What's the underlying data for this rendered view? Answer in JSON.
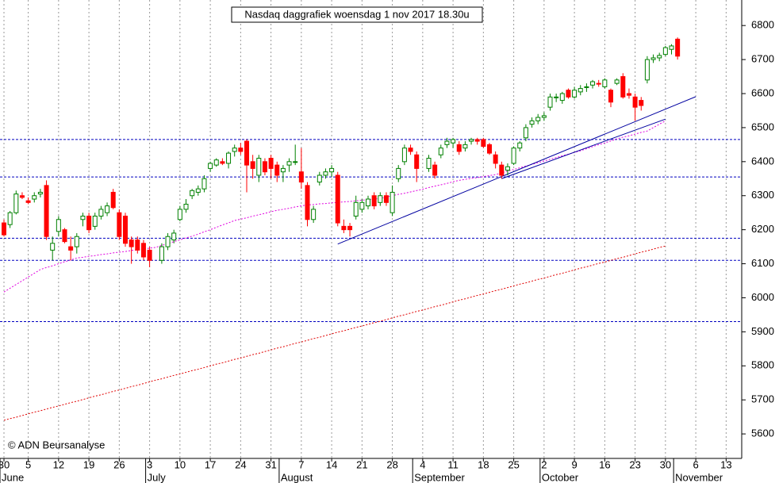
{
  "chart_data": {
    "type": "candlestick",
    "title": "Nasdaq daggrafiek woensdag 1 nov 2017 18.30u",
    "watermark": "© ADN Beursanalyse",
    "categories": [
      "30",
      null,
      null,
      null,
      "5",
      null,
      null,
      null,
      null,
      "12",
      null,
      null,
      null,
      null,
      "19",
      null,
      null,
      null,
      null,
      "26",
      null,
      null,
      null,
      null,
      "3",
      null,
      null,
      null,
      null,
      "10",
      null,
      null,
      null,
      null,
      "17",
      null,
      null,
      null,
      null,
      "24",
      null,
      null,
      null,
      null,
      "31",
      null,
      null,
      null,
      null,
      "7",
      null,
      null,
      null,
      null,
      "14",
      null,
      null,
      null,
      null,
      "21",
      null,
      null,
      null,
      null,
      "28",
      null,
      null,
      null,
      null,
      "4",
      null,
      null,
      null,
      null,
      "11",
      null,
      null,
      null,
      null,
      "18",
      null,
      null,
      null,
      null,
      "25",
      null,
      null,
      null,
      null,
      "2",
      null,
      null,
      null,
      null,
      "9",
      null,
      null,
      null,
      null,
      "16",
      null,
      null,
      null,
      null,
      "23",
      null,
      null,
      null,
      null,
      "30",
      null,
      null,
      null,
      null,
      "6",
      null,
      null,
      null,
      null,
      "13"
    ],
    "months": [
      "June",
      null,
      null,
      null,
      null,
      null,
      null,
      null,
      null,
      null,
      null,
      null,
      null,
      null,
      null,
      null,
      null,
      null,
      null,
      null,
      null,
      null,
      null,
      null,
      "July",
      null,
      null,
      null,
      null,
      null,
      null,
      null,
      null,
      null,
      null,
      null,
      null,
      null,
      null,
      null,
      null,
      null,
      null,
      null,
      null,
      null,
      "August",
      null,
      null,
      null,
      null,
      null,
      null,
      null,
      null,
      null,
      null,
      null,
      null,
      null,
      null,
      null,
      null,
      null,
      null,
      null,
      null,
      null,
      "September",
      null,
      null,
      null,
      null,
      null,
      null,
      null,
      null,
      null,
      null,
      null,
      null,
      null,
      null,
      null,
      null,
      null,
      null,
      null,
      null,
      "October",
      null,
      null,
      null,
      null,
      null,
      null,
      null,
      null,
      null,
      null,
      null,
      null,
      null,
      null,
      null,
      null,
      null,
      null,
      null,
      null,
      null,
      "November",
      null,
      null,
      null,
      null,
      null,
      null,
      null,
      null
    ],
    "open": [
      6220,
      6215,
      6250,
      6300,
      6285,
      6290,
      6305,
      6330,
      6140,
      6195,
      6200,
      6150,
      6150,
      6230,
      6240,
      6210,
      6240,
      6250,
      6310,
      6250,
      6240,
      6170,
      6170,
      6160,
      6140,
      null,
      6110,
      6150,
      6170,
      6230,
      6260,
      6300,
      6310,
      6320,
      6380,
      6390,
      6400,
      6395,
      6430,
      6440,
      6460,
      6400,
      6360,
      6400,
      6410,
      6390,
      6370,
      6390,
      6400,
      6370,
      6330,
      6230,
      6340,
      6360,
      6370,
      6360,
      6210,
      6210,
      6240,
      6260,
      6270,
      6300,
      6280,
      6300,
      6250,
      6350,
      6400,
      6440,
      6420,
      null,
      6380,
      6390,
      6420,
      6450,
      6455,
      6450,
      6440,
      6460,
      6465,
      6465,
      6450,
      6420,
      6390,
      6375,
      6395,
      6440,
      6470,
      6510,
      6520,
      6530,
      6560,
      6590,
      6580,
      6610,
      6590,
      6605,
      6620,
      6625,
      6630,
      6620,
      6610,
      6630,
      6650,
      6600,
      6590,
      6580,
      6640,
      6700,
      6705,
      6715,
      6730,
      6760,
      null,
      null,
      null,
      null,
      null,
      null,
      null,
      null
    ],
    "high": [
      6230,
      6255,
      6315,
      6310,
      6295,
      6310,
      6320,
      6345,
      6180,
      6240,
      6205,
      6180,
      6190,
      6250,
      6250,
      6250,
      6270,
      6280,
      6320,
      6260,
      6250,
      6180,
      6180,
      6170,
      6150,
      null,
      6160,
      6190,
      6200,
      6270,
      6290,
      6320,
      6330,
      6360,
      6400,
      6410,
      6410,
      6430,
      6450,
      6455,
      6465,
      6420,
      6420,
      6410,
      6420,
      6400,
      6390,
      6410,
      6450,
      6440,
      6340,
      6270,
      6370,
      6380,
      6390,
      6370,
      6230,
      6220,
      6300,
      6290,
      6300,
      6310,
      6310,
      6310,
      6330,
      6390,
      6450,
      6450,
      6430,
      null,
      6420,
      6400,
      6450,
      6470,
      6470,
      6460,
      6460,
      6470,
      6470,
      6470,
      6455,
      6430,
      6400,
      6395,
      6445,
      6460,
      6510,
      6530,
      6540,
      6545,
      6600,
      6600,
      6605,
      6615,
      6620,
      6625,
      6630,
      6640,
      6640,
      6645,
      6615,
      6645,
      6660,
      6615,
      6600,
      6590,
      6710,
      6715,
      6720,
      6740,
      6745,
      6765,
      null,
      null,
      null,
      null,
      null,
      null,
      null,
      null
    ],
    "low": [
      6180,
      6205,
      6245,
      6290,
      6275,
      6280,
      6295,
      6170,
      6110,
      6180,
      6160,
      6110,
      6130,
      6210,
      6190,
      6200,
      6230,
      6240,
      6260,
      6170,
      6150,
      6100,
      6130,
      6110,
      6090,
      null,
      6100,
      6140,
      6160,
      6225,
      6250,
      6290,
      6300,
      6310,
      6370,
      6385,
      6390,
      6380,
      6415,
      6420,
      6310,
      6350,
      6340,
      6360,
      6350,
      6340,
      6340,
      6370,
      6390,
      6320,
      6210,
      6220,
      6330,
      6350,
      6355,
      6210,
      6190,
      6180,
      6230,
      6250,
      6260,
      6260,
      6270,
      6270,
      6240,
      6340,
      6390,
      6420,
      6340,
      null,
      6370,
      6350,
      6410,
      6440,
      6440,
      6420,
      6430,
      6450,
      6450,
      6440,
      6420,
      6380,
      6350,
      6360,
      6390,
      6430,
      6460,
      6500,
      6510,
      6520,
      6550,
      6575,
      6570,
      6585,
      6585,
      6595,
      6605,
      6615,
      6620,
      6615,
      6560,
      6625,
      6585,
      6585,
      6520,
      6550,
      6630,
      6690,
      6695,
      6710,
      6715,
      6700,
      null,
      null,
      null,
      null,
      null,
      null,
      null,
      null
    ],
    "close": [
      6185,
      6250,
      6305,
      6295,
      6280,
      6300,
      6310,
      6180,
      6160,
      6230,
      6165,
      6140,
      6180,
      6240,
      6200,
      6240,
      6260,
      6270,
      6265,
      6180,
      6160,
      6150,
      6140,
      6120,
      6110,
      null,
      6150,
      6180,
      6190,
      6260,
      6275,
      6315,
      6320,
      6350,
      6395,
      6405,
      6395,
      6425,
      6440,
      6430,
      6390,
      6380,
      6410,
      6370,
      6380,
      6360,
      6380,
      6400,
      6400,
      6340,
      6230,
      6260,
      6360,
      6370,
      6380,
      6220,
      6200,
      6200,
      6280,
      6280,
      6290,
      6270,
      6300,
      6280,
      6310,
      6380,
      6440,
      6430,
      6380,
      null,
      6410,
      6360,
      6440,
      6460,
      6465,
      6430,
      6450,
      6465,
      6460,
      6445,
      6425,
      6395,
      6360,
      6385,
      6440,
      6455,
      6500,
      6520,
      6530,
      6535,
      6590,
      6590,
      6600,
      6590,
      6610,
      6615,
      6620,
      6635,
      6628,
      6640,
      6575,
      6640,
      6590,
      6595,
      6560,
      6565,
      6700,
      6705,
      6712,
      6735,
      6740,
      6710,
      null,
      null,
      null,
      null,
      null,
      null,
      null,
      null
    ],
    "up_color": "#008000",
    "down_color": "#ff0000",
    "series": [
      {
        "color": "#e000e0",
        "values": [
          6017,
          6028,
          6039,
          6050,
          6061,
          6072,
          6083,
          6089,
          6094,
          6100,
          6106,
          6111,
          6117,
          6119,
          6122,
          6124,
          6127,
          6129,
          6132,
          6134,
          6136,
          6139,
          6141,
          6143,
          6146,
          6148,
          6154,
          6159,
          6165,
          6170,
          6176,
          6181,
          6187,
          6194,
          6200,
          6207,
          6214,
          6220,
          6227,
          6231,
          6235,
          6240,
          6244,
          6248,
          6253,
          6257,
          6260,
          6263,
          6267,
          6270,
          6273,
          6274,
          6276,
          6277,
          6279,
          6280,
          6282,
          6283,
          6285,
          6287,
          6288,
          6290,
          6292,
          6296,
          6300,
          6304,
          6307,
          6311,
          6315,
          6319,
          6324,
          6328,
          6332,
          6336,
          6341,
          6345,
          6348,
          6351,
          6353,
          6356,
          6359,
          6362,
          6367,
          6372,
          6377,
          6382,
          6387,
          6392,
          6397,
          6402,
          6407,
          6412,
          6417,
          6422,
          6427,
          6432,
          6438,
          6444,
          6450,
          6455,
          6461,
          6467,
          6472,
          6476,
          6481,
          6486,
          6490,
          6500,
          6510,
          6520,
          null,
          null,
          null,
          null,
          null,
          null,
          null,
          null,
          null,
          null
        ]
      },
      {
        "color": "#e00000",
        "values": [
          5640,
          5645,
          5649,
          5654,
          5659,
          5664,
          5668,
          5673,
          5678,
          5682,
          5687,
          5692,
          5696,
          5701,
          5706,
          5711,
          5715,
          5720,
          5725,
          5729,
          5734,
          5739,
          5743,
          5748,
          5753,
          5758,
          5762,
          5767,
          5772,
          5776,
          5781,
          5786,
          5790,
          5795,
          5800,
          5805,
          5809,
          5814,
          5819,
          5823,
          5828,
          5833,
          5837,
          5842,
          5847,
          5852,
          5856,
          5861,
          5866,
          5870,
          5875,
          5880,
          5884,
          5889,
          5894,
          5899,
          5903,
          5908,
          5913,
          5917,
          5922,
          5927,
          5931,
          5936,
          5941,
          5946,
          5950,
          5955,
          5960,
          5964,
          5969,
          5974,
          5978,
          5983,
          5988,
          5993,
          5997,
          6002,
          6007,
          6011,
          6016,
          6021,
          6025,
          6030,
          6035,
          6040,
          6044,
          6049,
          6054,
          6058,
          6063,
          6068,
          6072,
          6077,
          6082,
          6087,
          6091,
          6096,
          6101,
          6105,
          6110,
          6115,
          6119,
          6124,
          6129,
          6134,
          6138,
          6143,
          6148,
          6152,
          null,
          null,
          null,
          null,
          null,
          null,
          null,
          null,
          null,
          null
        ]
      }
    ],
    "hlines": [
      6465,
      6355,
      6175,
      6110,
      5930
    ],
    "hline_color": "#0000c0",
    "trendlines": [
      {
        "color": "#0000a0",
        "start": [
          55,
          6158
        ],
        "end": [
          114,
          6591
        ]
      },
      {
        "color": "#0000a0",
        "start": [
          82,
          6350
        ],
        "end": [
          109,
          6525
        ]
      }
    ],
    "ylim": [
      5528,
      6875
    ],
    "yticks": [
      5600,
      5700,
      5800,
      5900,
      6000,
      6100,
      6200,
      6300,
      6400,
      6500,
      6600,
      6700,
      6800
    ],
    "grid": true
  }
}
